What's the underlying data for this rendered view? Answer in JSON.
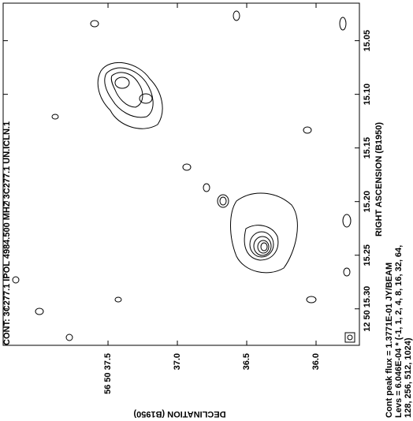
{
  "chart_data": {
    "type": "contour",
    "title": "CONT: 3C277.1  IPOL  4984.500 MHZ  3C277.1 UN.ICLN.1",
    "x_label": "RIGHT ASCENSION (B1950)",
    "y_label": "DECLINATION (B1950)",
    "notes": [
      "Cont peak flux =  1.3771E-01 JY/BEAM",
      "Levs = 6.046E-04 * (-1, 1, 2, 4, 8, 16, 32, 64,",
      "128, 256, 512, 1024)"
    ],
    "xlim": [
      15.015,
      15.334
    ],
    "xticks": [
      {
        "value": 15.05,
        "label": "15.05"
      },
      {
        "value": 15.1,
        "label": "15.10"
      },
      {
        "value": 15.15,
        "label": "15.15"
      },
      {
        "value": 15.2,
        "label": "15.20"
      },
      {
        "value": 15.25,
        "label": "15.25"
      },
      {
        "value": 15.3,
        "label": "12 50 15.30"
      }
    ],
    "ylim": [
      38.256,
      35.6875
    ],
    "yticks": [
      {
        "value": 37.5,
        "label": "56 50 37.5"
      },
      {
        "value": 37.0,
        "label": "37.0"
      },
      {
        "value": 36.5,
        "label": "36.5"
      },
      {
        "value": 36.0,
        "label": "36.0"
      }
    ]
  }
}
